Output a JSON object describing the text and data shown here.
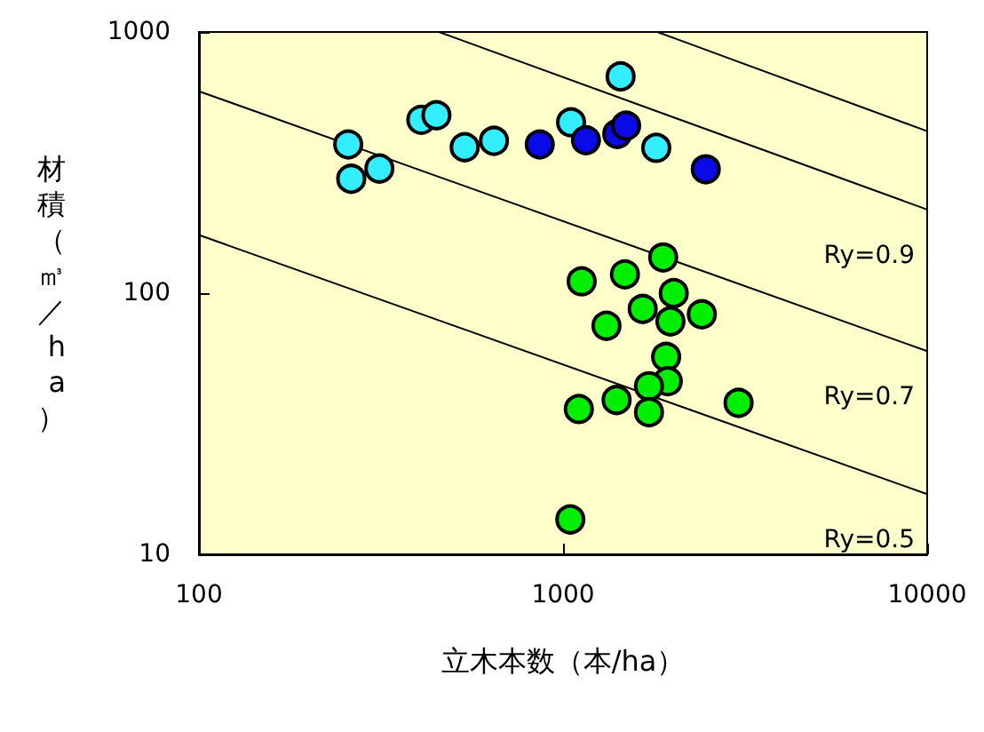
{
  "chart_data": {
    "type": "scatter",
    "xlabel": "立木本数（本/ha）",
    "ylabel": "材積（㎥／ha）",
    "log": "xy",
    "xlim": [
      100,
      10000
    ],
    "xticks": [
      100,
      1000,
      10000
    ],
    "ylim": [
      10,
      1000
    ],
    "yticks": [
      10,
      100,
      1000
    ],
    "grid": false,
    "legend": false,
    "marker": "circle",
    "series": [
      {
        "color": "#33eeff",
        "x": [
          257,
          262,
          313,
          408,
          449,
          537,
          646,
          1052,
          1439,
          1803
        ],
        "values": [
          371,
          274,
          300,
          461,
          480,
          362,
          383,
          451,
          676,
          360
        ]
      },
      {
        "color": "#0a0ae6",
        "x": [
          863,
          1156,
          1409,
          1490,
          2466
        ],
        "values": [
          371,
          385,
          407,
          438,
          298
        ]
      },
      {
        "color": "#00ee00",
        "x": [
          1884,
          1125,
          1479,
          2014,
          1655,
          2405,
          1972,
          1316,
          1919,
          1939,
          1722,
          1403,
          1105,
          1722,
          3034,
          1047
        ],
        "values": [
          137,
          111,
          118,
          100,
          87,
          83,
          78,
          75,
          57,
          46,
          44,
          39,
          36,
          35,
          38,
          13.6
        ]
      },
      {
        "type": "line",
        "marker": "none",
        "name": "Ry=0.5",
        "color": "#000000",
        "x": [
          100,
          10000
        ],
        "values": [
          167,
          17
        ]
      },
      {
        "type": "line",
        "marker": "none",
        "name": "Ry=0.7",
        "color": "#000000",
        "x": [
          100,
          10000
        ],
        "values": [
          593,
          60
        ]
      },
      {
        "type": "line",
        "marker": "none",
        "name": "Ry=0.9",
        "color": "#000000",
        "x": [
          456,
          10000
        ],
        "values": [
          1000,
          209
        ]
      },
      {
        "type": "line",
        "marker": "none",
        "color": "#000000",
        "x": [
          1815,
          10000
        ],
        "values": [
          1000,
          417
        ]
      }
    ]
  }
}
